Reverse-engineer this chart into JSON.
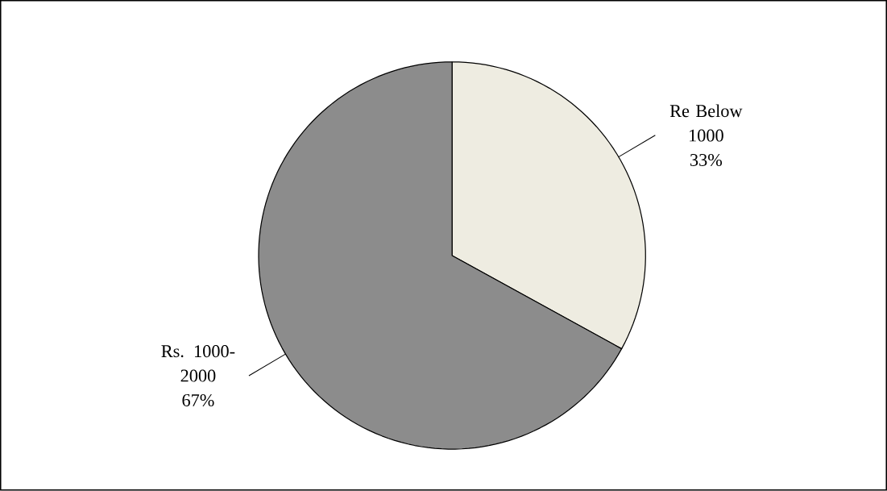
{
  "chart_data": {
    "type": "pie",
    "categories": [
      "Re Below 1000",
      "Rs. 1000-2000"
    ],
    "values": [
      33,
      67
    ],
    "colors": [
      "#eeece1",
      "#8c8c8c"
    ],
    "value_labels": [
      "33%",
      "67%"
    ]
  }
}
